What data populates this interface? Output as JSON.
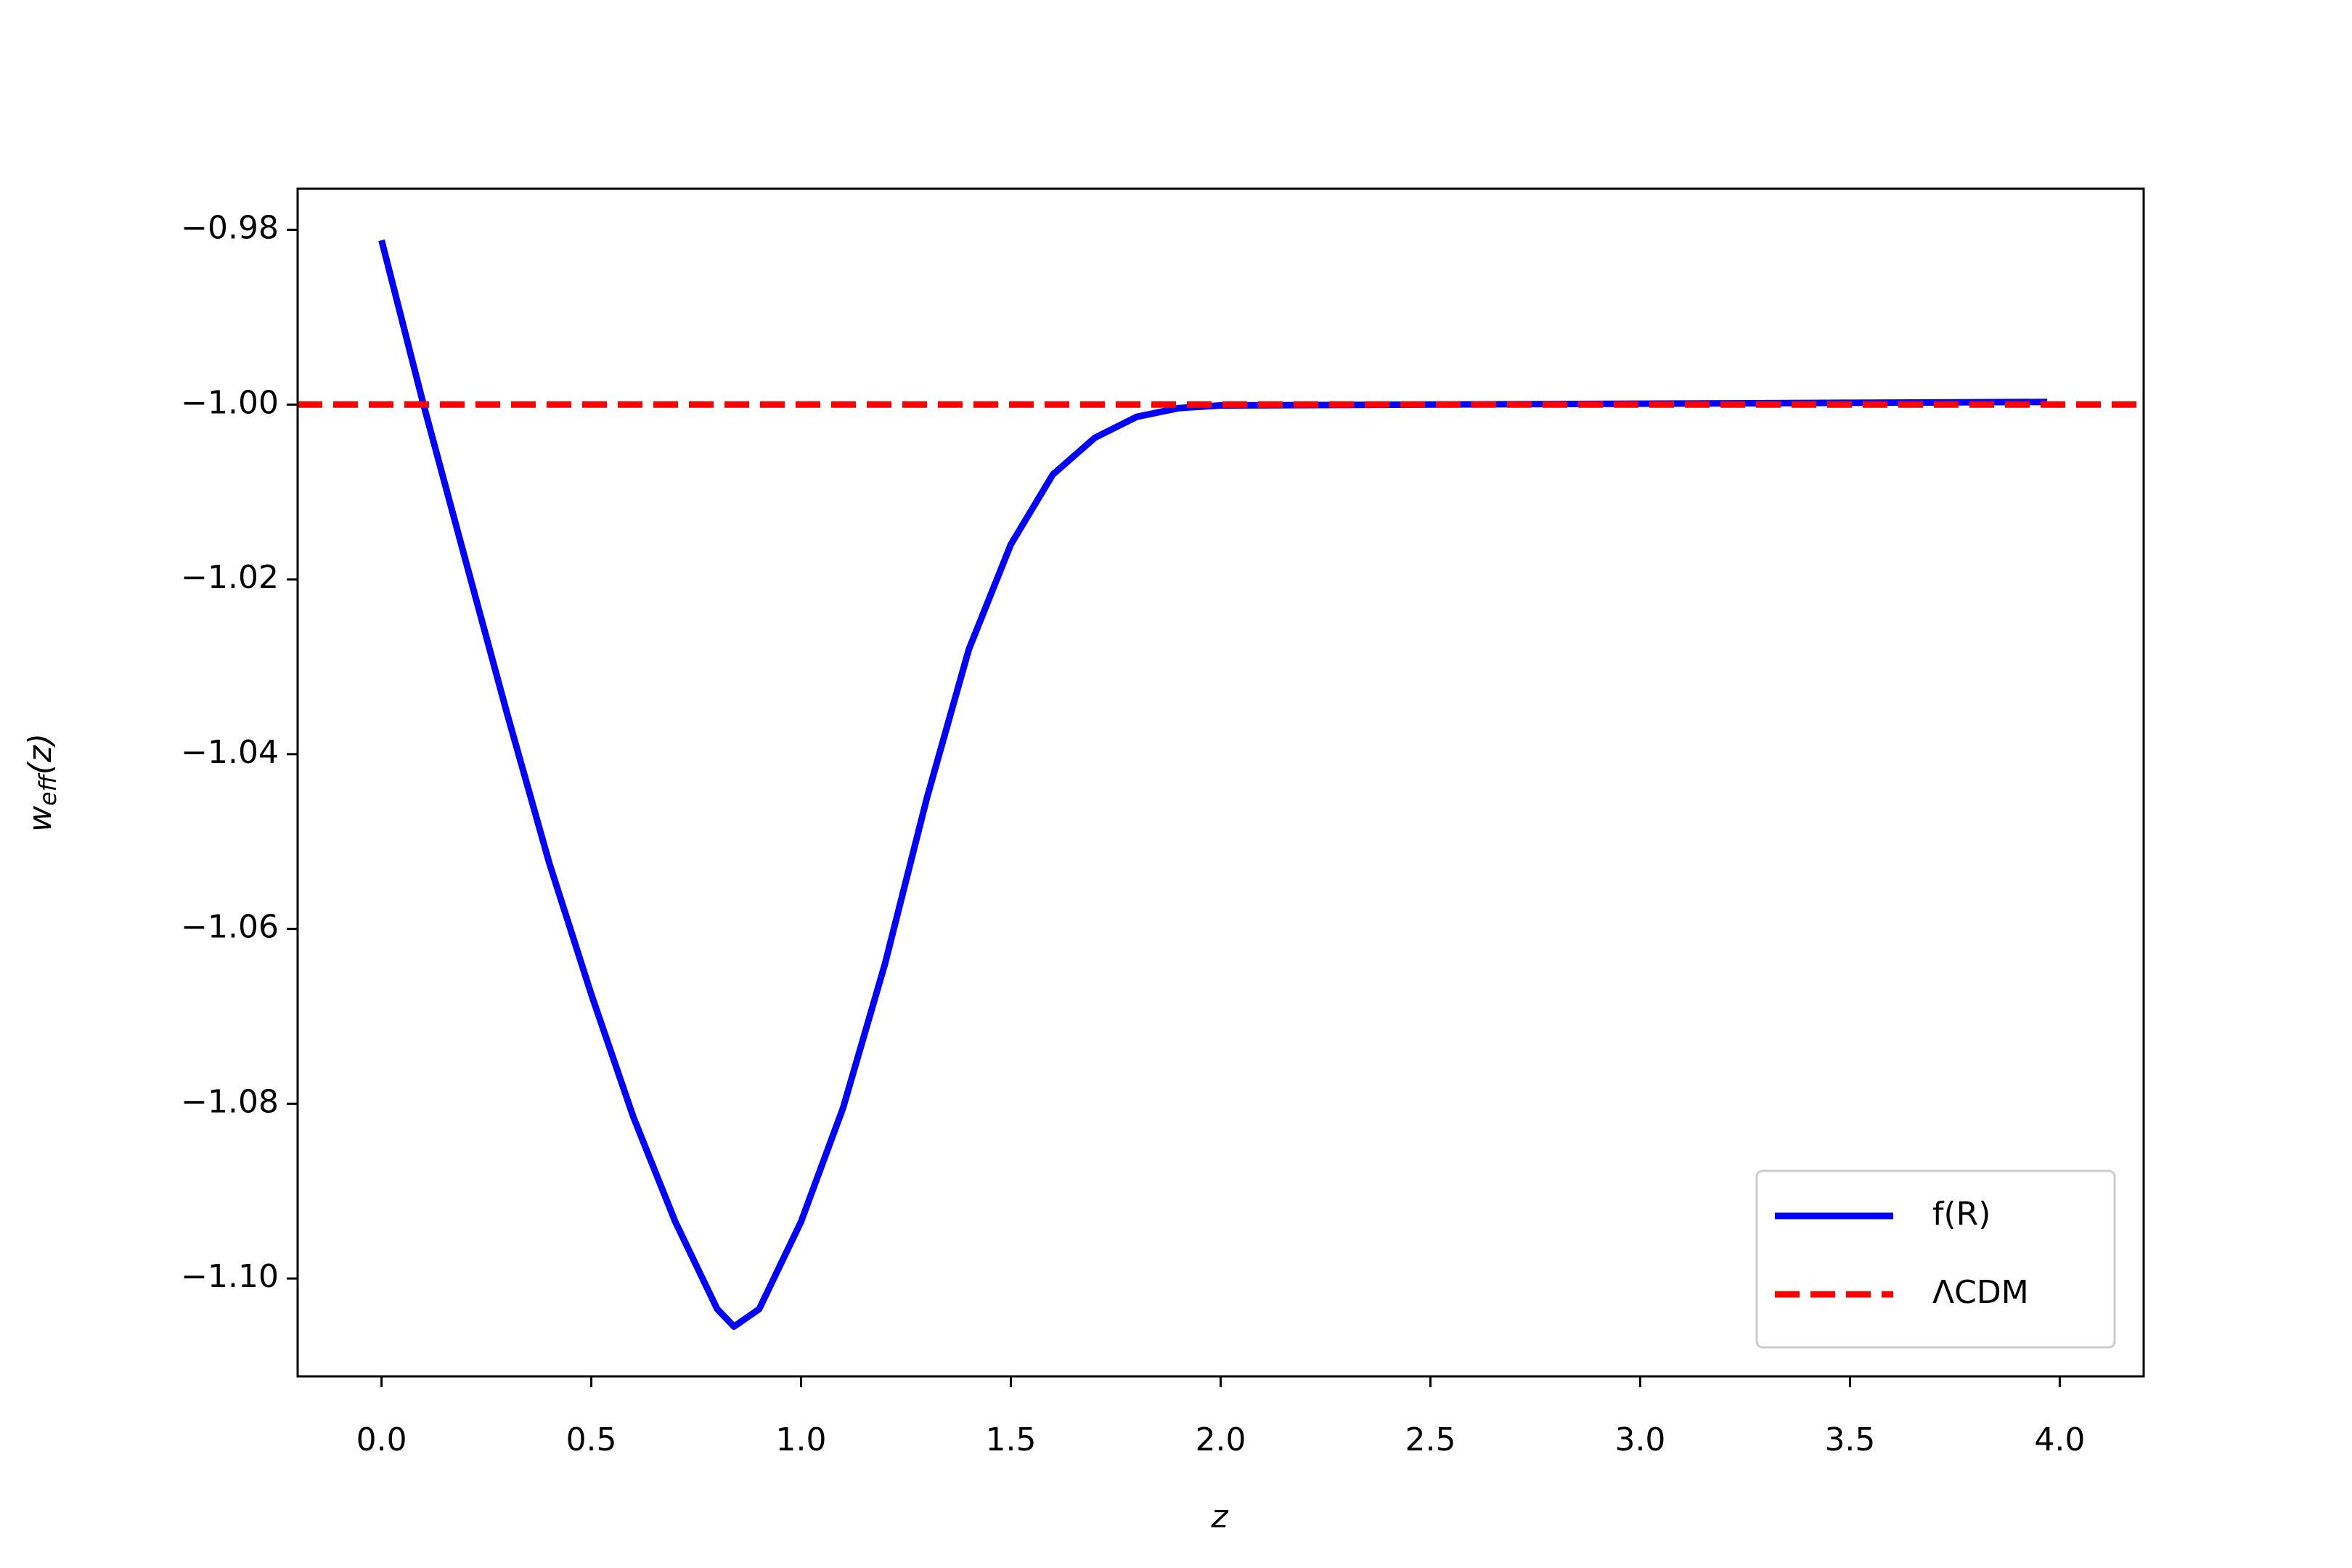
{
  "chart_data": {
    "type": "line",
    "xlabel": "z",
    "ylabel": {
      "base": "w",
      "sub": "eff",
      "rest": "(z)"
    },
    "xlim": [
      -0.2,
      4.2
    ],
    "ylim": [
      -1.1112,
      -0.9753
    ],
    "xticks": [
      {
        "value": 0,
        "label": "0.0"
      },
      {
        "value": 0.5,
        "label": "0.5"
      },
      {
        "value": 1,
        "label": "1.0"
      },
      {
        "value": 1.5,
        "label": "1.5"
      },
      {
        "value": 2,
        "label": "2.0"
      },
      {
        "value": 2.5,
        "label": "2.5"
      },
      {
        "value": 3,
        "label": "3.0"
      },
      {
        "value": 3.5,
        "label": "3.5"
      },
      {
        "value": 4,
        "label": "4.0"
      }
    ],
    "yticks": [
      {
        "value": -0.98,
        "label": "−0.98"
      },
      {
        "value": -1.0,
        "label": "−1.00"
      },
      {
        "value": -1.02,
        "label": "−1.02"
      },
      {
        "value": -1.04,
        "label": "−1.04"
      },
      {
        "value": -1.06,
        "label": "−1.06"
      },
      {
        "value": -1.08,
        "label": "−1.08"
      },
      {
        "value": -1.1,
        "label": "−1.10"
      }
    ],
    "legend": "lower right",
    "series": [
      {
        "name": "f(R)",
        "color": "#0000ff",
        "style": "solid",
        "x": [
          0,
          0.1,
          0.2,
          0.3,
          0.4,
          0.5,
          0.6,
          0.7,
          0.8,
          0.84,
          0.9,
          1.0,
          1.1,
          1.2,
          1.3,
          1.4,
          1.5,
          1.6,
          1.7,
          1.8,
          1.9,
          2.0,
          2.5,
          3.0,
          3.5,
          3.97
        ],
        "values": [
          -0.9812,
          -1.0,
          -1.0178,
          -1.0355,
          -1.0525,
          -1.0675,
          -1.0815,
          -1.0935,
          -1.1035,
          -1.1055,
          -1.1035,
          -1.0935,
          -1.0805,
          -1.064,
          -1.045,
          -1.028,
          -1.016,
          -1.008,
          -1.0038,
          -1.0014,
          -1.0004,
          -1.0001,
          -1.0,
          -0.9999,
          -0.9998,
          -0.9997
        ]
      },
      {
        "name": "ΛCDM",
        "color": "#ff0000",
        "style": "dashed",
        "x": [
          -0.2,
          4.2
        ],
        "values": [
          -1.0,
          -1.0
        ]
      }
    ]
  }
}
